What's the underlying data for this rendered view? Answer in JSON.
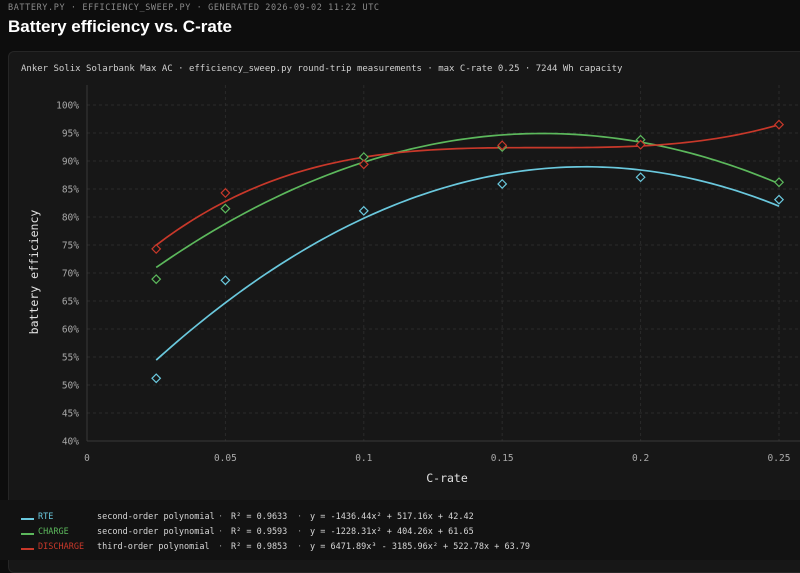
{
  "header": {
    "breadcrumb": "BATTERY.PY · EFFICIENCY_SWEEP.PY · GENERATED 2026-09-02 11:22 UTC",
    "title": "Battery efficiency vs. C-rate"
  },
  "chart_data": {
    "type": "scatter",
    "title": "Battery efficiency vs. C-rate",
    "subtitle": "Anker Solix Solarbank Max AC  ·  efficiency_sweep.py round-trip measurements  ·  max C-rate 0.25  ·  7244 Wh capacity",
    "xlabel": "C-rate",
    "ylabel": "battery efficiency",
    "xlim": [
      0,
      0.25
    ],
    "ylim": [
      40,
      100
    ],
    "x_ticks": [
      "0",
      "0.05",
      "0.1",
      "0.15",
      "0.2",
      "0.25"
    ],
    "y_ticks": [
      "40%",
      "45%",
      "50%",
      "55%",
      "60%",
      "65%",
      "70%",
      "75%",
      "80%",
      "85%",
      "90%",
      "95%",
      "100%"
    ],
    "grid": true,
    "legend_position": "bottom",
    "series": [
      {
        "name": "RTE",
        "color": "#6ac8dd",
        "x": [
          0.025,
          0.05,
          0.1,
          0.15,
          0.2,
          0.25
        ],
        "y": [
          51.2,
          68.7,
          81.1,
          85.9,
          87.1,
          83.1
        ],
        "fit_type": "second-order polynomial",
        "r2": "R² = 0.9633",
        "equation": "y = -1436.44x² + 517.16x + 42.42",
        "coefficients": [
          42.42,
          517.16,
          -1436.44
        ]
      },
      {
        "name": "CHARGE",
        "color": "#5cb85c",
        "x": [
          0.025,
          0.05,
          0.1,
          0.15,
          0.2,
          0.25
        ],
        "y": [
          68.9,
          81.5,
          90.7,
          92.5,
          93.8,
          86.2
        ],
        "fit_type": "second-order polynomial",
        "r2": "R² = 0.9593",
        "equation": "y = -1228.31x² + 404.26x + 61.65",
        "coefficients": [
          61.65,
          404.26,
          -1228.31
        ]
      },
      {
        "name": "DISCHARGE",
        "color": "#c8382a",
        "x": [
          0.025,
          0.05,
          0.1,
          0.15,
          0.2,
          0.25
        ],
        "y": [
          74.3,
          84.3,
          89.4,
          92.8,
          92.9,
          96.5
        ],
        "fit_type": "third-order polynomial",
        "r2": "R² = 0.9853",
        "equation": "y = 6471.89x³ - 3185.96x² + 522.78x + 63.79",
        "coefficients": [
          63.79,
          522.78,
          -3185.96,
          6471.89
        ]
      }
    ]
  },
  "legend_separator": "·"
}
